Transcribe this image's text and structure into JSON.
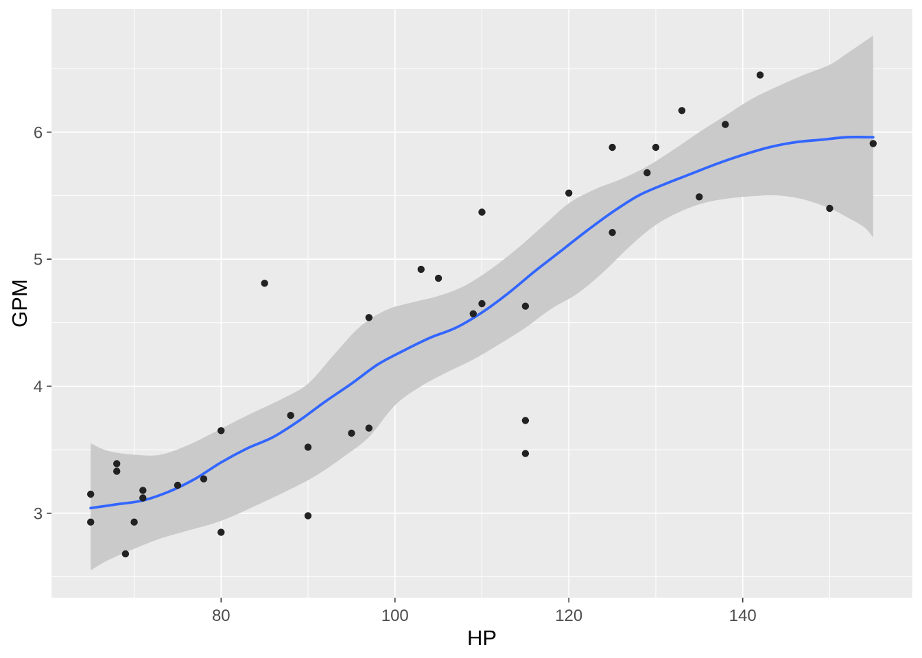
{
  "chart_data": {
    "type": "scatter",
    "title": "",
    "xlabel": "HP",
    "ylabel": "GPM",
    "x_ticks": [
      80,
      100,
      120,
      140
    ],
    "x_minor_ticks": [
      70,
      90,
      110,
      130,
      150
    ],
    "y_ticks": [
      3,
      4,
      5,
      6
    ],
    "y_minor_ticks": [
      2.5,
      3.5,
      4.5,
      5.5,
      6.5
    ],
    "xlim": [
      60.5,
      159.5
    ],
    "ylim": [
      2.335,
      6.97
    ],
    "grid": "major-and-minor-white-on-gray",
    "legend_position": "none",
    "points": [
      [
        65,
        3.15
      ],
      [
        65,
        2.93
      ],
      [
        68,
        3.39
      ],
      [
        68,
        3.33
      ],
      [
        69,
        2.68
      ],
      [
        70,
        2.93
      ],
      [
        71,
        3.18
      ],
      [
        71,
        3.12
      ],
      [
        75,
        3.22
      ],
      [
        78,
        3.27
      ],
      [
        80,
        3.65
      ],
      [
        80,
        2.85
      ],
      [
        85,
        4.81
      ],
      [
        88,
        3.77
      ],
      [
        90,
        3.52
      ],
      [
        90,
        2.98
      ],
      [
        95,
        3.63
      ],
      [
        97,
        4.54
      ],
      [
        97,
        3.67
      ],
      [
        103,
        4.92
      ],
      [
        105,
        4.85
      ],
      [
        109,
        4.57
      ],
      [
        110,
        4.65
      ],
      [
        110,
        5.37
      ],
      [
        115,
        4.63
      ],
      [
        115,
        3.73
      ],
      [
        115,
        3.47
      ],
      [
        120,
        5.52
      ],
      [
        125,
        5.88
      ],
      [
        125,
        5.21
      ],
      [
        129,
        5.68
      ],
      [
        130,
        5.88
      ],
      [
        133,
        6.17
      ],
      [
        135,
        5.49
      ],
      [
        138,
        6.06
      ],
      [
        142,
        6.45
      ],
      [
        150,
        5.4
      ],
      [
        155,
        5.91
      ]
    ],
    "smooth": {
      "method": "loess",
      "line": [
        [
          65,
          3.04
        ],
        [
          68,
          3.07
        ],
        [
          71,
          3.1
        ],
        [
          74,
          3.17
        ],
        [
          77,
          3.27
        ],
        [
          80,
          3.4
        ],
        [
          83,
          3.51
        ],
        [
          86,
          3.6
        ],
        [
          89,
          3.73
        ],
        [
          92,
          3.88
        ],
        [
          95,
          4.02
        ],
        [
          98,
          4.17
        ],
        [
          101,
          4.28
        ],
        [
          104,
          4.38
        ],
        [
          107,
          4.46
        ],
        [
          110,
          4.58
        ],
        [
          113,
          4.73
        ],
        [
          116,
          4.9
        ],
        [
          119,
          5.06
        ],
        [
          122,
          5.22
        ],
        [
          125,
          5.37
        ],
        [
          128,
          5.5
        ],
        [
          131,
          5.59
        ],
        [
          134,
          5.67
        ],
        [
          137,
          5.75
        ],
        [
          140,
          5.82
        ],
        [
          143,
          5.88
        ],
        [
          146,
          5.92
        ],
        [
          149,
          5.94
        ],
        [
          152,
          5.96
        ],
        [
          155,
          5.96
        ]
      ],
      "ribbon_upper": [
        [
          65,
          3.55
        ],
        [
          67,
          3.49
        ],
        [
          70,
          3.46
        ],
        [
          73,
          3.46
        ],
        [
          76,
          3.53
        ],
        [
          79,
          3.63
        ],
        [
          83,
          3.77
        ],
        [
          87,
          3.9
        ],
        [
          90,
          4.02
        ],
        [
          93,
          4.25
        ],
        [
          96,
          4.47
        ],
        [
          99,
          4.6
        ],
        [
          102,
          4.66
        ],
        [
          105,
          4.71
        ],
        [
          108,
          4.79
        ],
        [
          111,
          4.92
        ],
        [
          114,
          5.08
        ],
        [
          117,
          5.26
        ],
        [
          120,
          5.44
        ],
        [
          123,
          5.55
        ],
        [
          126,
          5.63
        ],
        [
          129,
          5.73
        ],
        [
          132,
          5.86
        ],
        [
          135,
          6.0
        ],
        [
          138,
          6.13
        ],
        [
          141,
          6.26
        ],
        [
          144,
          6.36
        ],
        [
          147,
          6.45
        ],
        [
          150,
          6.53
        ],
        [
          152,
          6.62
        ],
        [
          155,
          6.76
        ]
      ],
      "ribbon_lower": [
        [
          65,
          2.55
        ],
        [
          67,
          2.63
        ],
        [
          70,
          2.72
        ],
        [
          73,
          2.8
        ],
        [
          76,
          2.86
        ],
        [
          80,
          2.94
        ],
        [
          84,
          3.06
        ],
        [
          88,
          3.19
        ],
        [
          91,
          3.3
        ],
        [
          94,
          3.44
        ],
        [
          97,
          3.6
        ],
        [
          100,
          3.85
        ],
        [
          103,
          4.0
        ],
        [
          106,
          4.11
        ],
        [
          109,
          4.21
        ],
        [
          112,
          4.33
        ],
        [
          115,
          4.46
        ],
        [
          118,
          4.61
        ],
        [
          121,
          4.73
        ],
        [
          124,
          4.9
        ],
        [
          127,
          5.1
        ],
        [
          130,
          5.27
        ],
        [
          133,
          5.38
        ],
        [
          136,
          5.45
        ],
        [
          140,
          5.49
        ],
        [
          144,
          5.5
        ],
        [
          147,
          5.47
        ],
        [
          150,
          5.4
        ],
        [
          152,
          5.33
        ],
        [
          154,
          5.25
        ],
        [
          155,
          5.17
        ]
      ]
    },
    "colors": {
      "outer_background": "#FFFFFF",
      "panel_background": "#EBEBEB",
      "grid": "#FFFFFF",
      "ribbon": "#CACACA",
      "smooth_line": "#3366FF",
      "point": "#222222",
      "axis_text": "#4D4D4D",
      "axis_title": "#000000",
      "tick_mark": "#333333"
    }
  }
}
